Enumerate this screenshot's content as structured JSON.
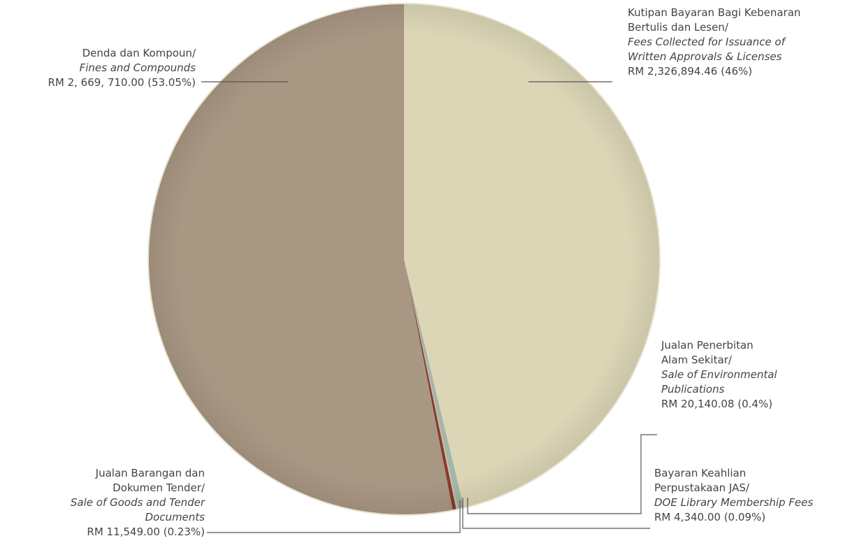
{
  "chart_data": {
    "type": "pie",
    "title": "",
    "slices": [
      {
        "key": "fees",
        "label_ms": "Kutipan Bayaran Bagi Kebenaran Bertulis dan Lesen/",
        "label_en": "Fees Collected for Issuance of Written Approvals & Licenses",
        "amount_text": "RM 2,326,894.46 (46%)",
        "value": 2326894.46,
        "percent": 46,
        "color": "#dcd6b6"
      },
      {
        "key": "publications",
        "label_ms": "Jualan Penerbitan Alam Sekitar/",
        "label_en": "Sale of Environmental Publications",
        "amount_text": "RM 20,140.08 (0.4%)",
        "value": 20140.08,
        "percent": 0.4,
        "color": "#a4b5a9"
      },
      {
        "key": "library",
        "label_ms": "Bayaran Keahlian Perpustakaan JAS/",
        "label_en": "DOE Library Membership Fees",
        "amount_text": "RM 4,340.00 (0.09%)",
        "value": 4340.0,
        "percent": 0.09,
        "color": "#c9c2a0"
      },
      {
        "key": "tender",
        "label_ms": "Jualan Barangan dan Dokumen Tender/",
        "label_en": "Sale of Goods and Tender Documents",
        "amount_text": "RM 11,549.00 (0.23%)",
        "value": 11549.0,
        "percent": 0.23,
        "color": "#8a3a2e"
      },
      {
        "key": "fines",
        "label_ms": "Denda dan Kompoun/",
        "label_en": "Fines and Compounds",
        "amount_text": "RM 2, 669, 710.00 (53.05%)",
        "value": 2669710.0,
        "percent": 53.05,
        "color": "#a89783"
      }
    ]
  },
  "labels": {
    "fees": {
      "ms_line1": "Kutipan Bayaran Bagi Kebenaran",
      "ms_line2": "Bertulis dan Lesen/",
      "en_line1": "Fees Collected for Issuance of",
      "en_line2": "Written Approvals & Licenses",
      "amount": "RM 2,326,894.46 (46%)"
    },
    "fines": {
      "ms_line1": "Denda dan Kompoun/",
      "en_line1": "Fines and Compounds",
      "amount": "RM 2, 669, 710.00 (53.05%)"
    },
    "publications": {
      "ms_line1": "Jualan Penerbitan",
      "ms_line2": "Alam Sekitar/",
      "en_line1": "Sale of Environmental",
      "en_line2": "Publications",
      "amount": "RM 20,140.08 (0.4%)"
    },
    "library": {
      "ms_line1": "Bayaran Keahlian",
      "ms_line2": "Perpustakaan JAS/",
      "en_line1": "DOE Library Membership Fees",
      "amount": "RM 4,340.00 (0.09%)"
    },
    "tender": {
      "ms_line1": "Jualan Barangan dan",
      "ms_line2": "Dokumen Tender/",
      "en_line1": "Sale of Goods and Tender",
      "en_line2": "Documents",
      "amount": "RM 11,549.00 (0.23%)"
    }
  }
}
